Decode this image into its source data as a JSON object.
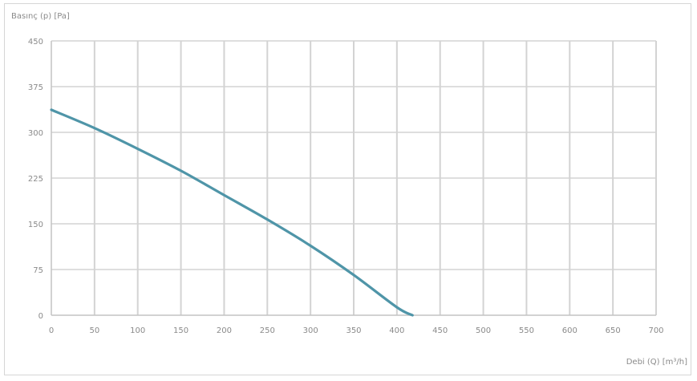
{
  "chart_data": {
    "type": "line",
    "title": "",
    "ylabel": "Basınç (p) [Pa]",
    "xlabel": "Debi (Q) [m³/h]",
    "xlim": [
      0,
      700
    ],
    "ylim": [
      0,
      450
    ],
    "x_ticks": [
      0,
      50,
      100,
      150,
      200,
      250,
      300,
      350,
      400,
      450,
      500,
      550,
      600,
      650,
      700
    ],
    "y_ticks": [
      0,
      75,
      150,
      225,
      300,
      375,
      450
    ],
    "grid": true,
    "line_color": "#4f95a8",
    "grid_color": "#d3d3d3",
    "series": [
      {
        "x": [
          0,
          50,
          100,
          150,
          200,
          250,
          300,
          350,
          400,
          418
        ],
        "y": [
          337,
          307,
          273,
          237,
          197,
          157,
          114,
          66,
          13,
          0
        ]
      }
    ]
  }
}
